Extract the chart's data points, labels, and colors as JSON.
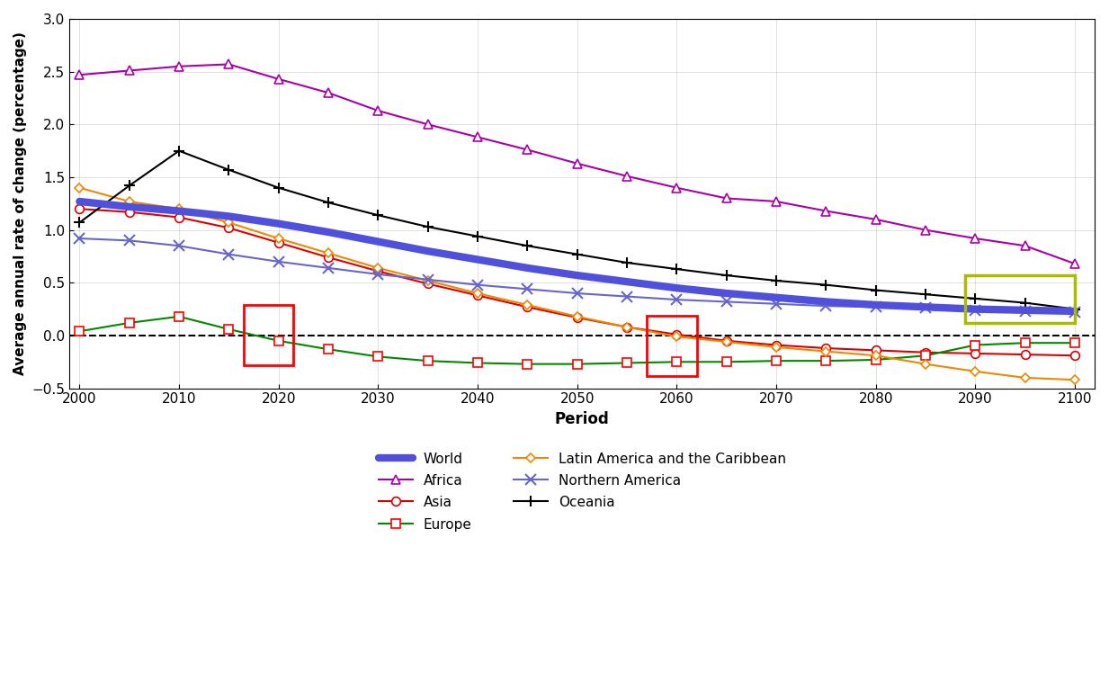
{
  "periods": [
    2000,
    2005,
    2010,
    2015,
    2020,
    2025,
    2030,
    2035,
    2040,
    2045,
    2050,
    2055,
    2060,
    2065,
    2070,
    2075,
    2080,
    2085,
    2090,
    2095,
    2100
  ],
  "world": [
    1.27,
    1.22,
    1.18,
    1.13,
    1.06,
    0.98,
    0.89,
    0.8,
    0.72,
    0.64,
    0.57,
    0.51,
    0.45,
    0.4,
    0.36,
    0.32,
    0.29,
    0.27,
    0.25,
    0.24,
    0.23
  ],
  "africa": [
    2.47,
    2.51,
    2.55,
    2.57,
    2.43,
    2.3,
    2.13,
    2.0,
    1.88,
    1.76,
    1.63,
    1.51,
    1.4,
    1.3,
    1.27,
    1.18,
    1.1,
    1.0,
    0.92,
    0.85,
    0.68
  ],
  "asia": [
    1.2,
    1.17,
    1.12,
    1.02,
    0.88,
    0.74,
    0.61,
    0.49,
    0.38,
    0.27,
    0.17,
    0.08,
    0.01,
    -0.05,
    -0.09,
    -0.12,
    -0.14,
    -0.16,
    -0.17,
    -0.18,
    -0.19
  ],
  "europe": [
    0.04,
    0.12,
    0.18,
    0.06,
    -0.05,
    -0.13,
    -0.2,
    -0.24,
    -0.26,
    -0.27,
    -0.27,
    -0.26,
    -0.25,
    -0.25,
    -0.24,
    -0.24,
    -0.23,
    -0.19,
    -0.09,
    -0.07,
    -0.07
  ],
  "latin_america": [
    1.4,
    1.27,
    1.2,
    1.07,
    0.92,
    0.78,
    0.64,
    0.52,
    0.4,
    0.29,
    0.18,
    0.08,
    -0.01,
    -0.06,
    -0.11,
    -0.15,
    -0.19,
    -0.27,
    -0.34,
    -0.4,
    -0.42
  ],
  "northern_america": [
    0.92,
    0.9,
    0.85,
    0.77,
    0.7,
    0.64,
    0.58,
    0.53,
    0.48,
    0.44,
    0.4,
    0.37,
    0.34,
    0.32,
    0.3,
    0.28,
    0.27,
    0.26,
    0.24,
    0.23,
    0.22
  ],
  "oceania": [
    1.07,
    1.42,
    1.75,
    1.57,
    1.4,
    1.26,
    1.14,
    1.03,
    0.94,
    0.85,
    0.77,
    0.69,
    0.63,
    0.57,
    0.52,
    0.48,
    0.43,
    0.39,
    0.35,
    0.31,
    0.25
  ],
  "world_color": "#5050dd",
  "africa_color": "#aa00aa",
  "asia_color": "#dd0000",
  "europe_color": "#008800",
  "latin_america_color": "#ee8800",
  "northern_america_color": "#6666cc",
  "oceania_color": "#000000",
  "xlabel": "Period",
  "ylabel": "Average annual rate of change (percentage)",
  "ylim": [
    -0.5,
    3.0
  ],
  "xlim": [
    1999,
    2102
  ],
  "yticks": [
    -0.5,
    0.0,
    0.5,
    1.0,
    1.5,
    2.0,
    2.5,
    3.0
  ],
  "xticks": [
    2000,
    2010,
    2020,
    2030,
    2040,
    2050,
    2060,
    2070,
    2080,
    2090,
    2100
  ]
}
